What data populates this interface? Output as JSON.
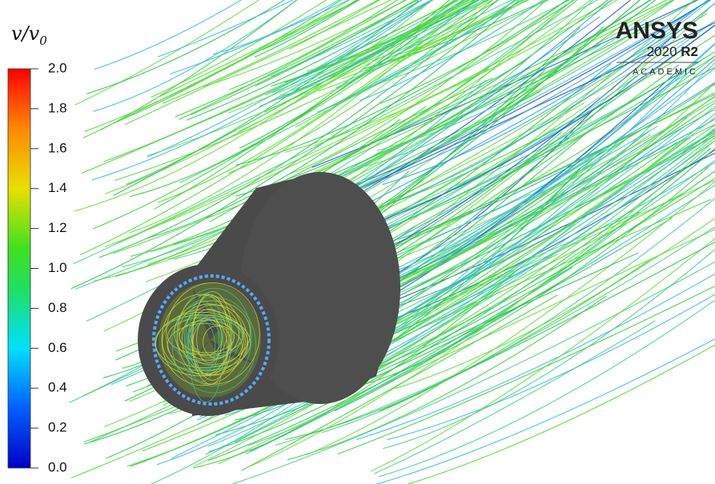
{
  "colorbar": {
    "label": "v/v",
    "label_subscript": "0",
    "range": [
      0,
      2
    ],
    "ticks": [
      {
        "value": 0,
        "label": "0.0"
      },
      {
        "value": 0.2,
        "label": "0.2"
      },
      {
        "value": 0.4,
        "label": "0.4"
      },
      {
        "value": 0.6,
        "label": "0.6"
      },
      {
        "value": 0.8,
        "label": "0.8"
      },
      {
        "value": 1,
        "label": "1.0"
      },
      {
        "value": 1.2,
        "label": "1.2"
      },
      {
        "value": 1.4,
        "label": "1.4"
      },
      {
        "value": 1.6,
        "label": "1.6"
      },
      {
        "value": 1.8,
        "label": "1.8"
      },
      {
        "value": 2,
        "label": "2.0"
      }
    ]
  },
  "logo": {
    "brand": "ANSYS",
    "year": "2020",
    "release": "R2",
    "edition": "ACADEMIC"
  }
}
